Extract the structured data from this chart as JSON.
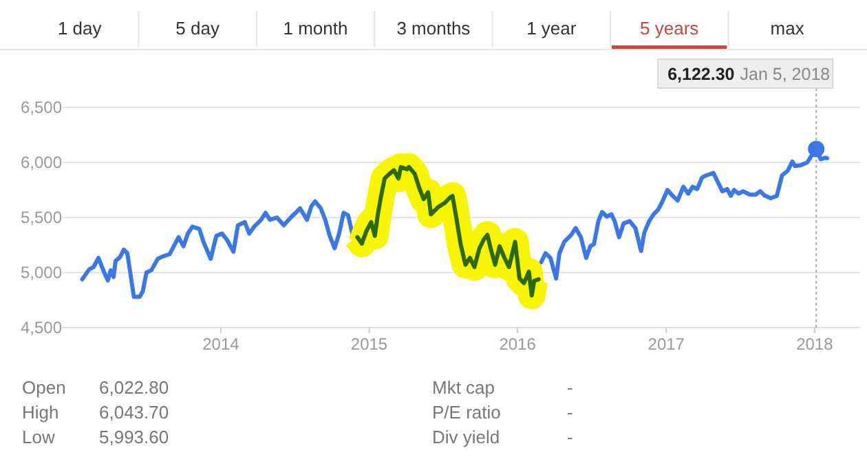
{
  "chart_data": {
    "type": "line",
    "xlim": [
      "2012-12-06",
      "2018-04-23"
    ],
    "xticks": [
      {
        "value": "2014-01-01",
        "label": "2014"
      },
      {
        "value": "2015-01-01",
        "label": "2015"
      },
      {
        "value": "2016-01-01",
        "label": "2016"
      },
      {
        "value": "2017-01-01",
        "label": "2017"
      },
      {
        "value": "2018-01-01",
        "label": "2018"
      }
    ],
    "ylim": [
      4500,
      6700
    ],
    "yticks": [
      {
        "value": 4500,
        "label": "4,500"
      },
      {
        "value": 5000,
        "label": "5,000"
      },
      {
        "value": 5500,
        "label": "5,500"
      },
      {
        "value": 6000,
        "label": "6,000"
      },
      {
        "value": 6500,
        "label": "6,500"
      }
    ],
    "grid": "y",
    "series": [
      {
        "color": "#3b78e7",
        "x": [
          "2013-01-25",
          "2013-02-11",
          "2013-02-22",
          "2013-03-06",
          "2013-03-20",
          "2013-03-29",
          "2013-04-05",
          "2013-04-12",
          "2013-04-17",
          "2013-04-28",
          "2013-05-07",
          "2013-05-16",
          "2013-05-24",
          "2013-06-01",
          "2013-06-15",
          "2013-06-23",
          "2013-07-02",
          "2013-07-14",
          "2013-07-30",
          "2013-08-11",
          "2013-08-28",
          "2013-09-19",
          "2013-10-01",
          "2013-10-12",
          "2013-10-23",
          "2013-11-09",
          "2013-11-20",
          "2013-12-07",
          "2013-12-21",
          "2014-01-04",
          "2014-01-17",
          "2014-02-01",
          "2014-02-12",
          "2014-03-01",
          "2014-03-12",
          "2014-03-24",
          "2014-04-10",
          "2014-04-21",
          "2014-05-02",
          "2014-05-19",
          "2014-06-05",
          "2014-06-22",
          "2014-07-04",
          "2014-07-15",
          "2014-08-01",
          "2014-08-12",
          "2014-08-21",
          "2014-09-04",
          "2014-09-15",
          "2014-09-26",
          "2014-10-08",
          "2014-10-19",
          "2014-10-30",
          "2014-11-10",
          "2014-11-22",
          "2014-12-03",
          "2015-06-01",
          "2016-02-28",
          "2016-03-10",
          "2016-03-22",
          "2016-04-05",
          "2016-04-13",
          "2016-04-25",
          "2016-05-12",
          "2016-05-23",
          "2016-06-05",
          "2016-06-18",
          "2016-06-28",
          "2016-07-07",
          "2016-07-18",
          "2016-07-27",
          "2016-08-08",
          "2016-08-19",
          "2016-08-27",
          "2016-09-07",
          "2016-09-18",
          "2016-10-03",
          "2016-10-17",
          "2016-10-31",
          "2016-11-08",
          "2016-11-20",
          "2016-12-01",
          "2016-12-12",
          "2016-12-21",
          "2017-01-04",
          "2017-01-17",
          "2017-01-29",
          "2017-02-12",
          "2017-02-24",
          "2017-03-07",
          "2017-03-18",
          "2017-03-30",
          "2017-04-10",
          "2017-04-27",
          "2017-05-08",
          "2017-05-19",
          "2017-05-31",
          "2017-06-09",
          "2017-06-17",
          "2017-06-28",
          "2017-07-09",
          "2017-07-26",
          "2017-08-09",
          "2017-08-20",
          "2017-08-31",
          "2017-09-15",
          "2017-09-30",
          "2017-10-13",
          "2017-10-27",
          "2017-11-07",
          "2017-11-14",
          "2017-11-28",
          "2017-12-14",
          "2017-12-26",
          "2018-01-05",
          "2018-01-16",
          "2018-01-27",
          "2018-02-01"
        ],
        "values": [
          4938,
          5029,
          5050,
          5133,
          5000,
          4929,
          5020,
          4960,
          5104,
          5140,
          5208,
          5175,
          4979,
          4779,
          4779,
          4829,
          5000,
          5021,
          5125,
          5146,
          5167,
          5321,
          5238,
          5354,
          5417,
          5396,
          5271,
          5125,
          5333,
          5354,
          5292,
          5188,
          5429,
          5458,
          5354,
          5417,
          5479,
          5542,
          5479,
          5500,
          5429,
          5500,
          5542,
          5583,
          5479,
          5604,
          5646,
          5583,
          5479,
          5333,
          5221,
          5354,
          5542,
          5521,
          5333,
          5321,
          null,
          5092,
          5175,
          5133,
          4946,
          5175,
          5279,
          5342,
          5404,
          5321,
          5133,
          5238,
          5258,
          5467,
          5550,
          5508,
          5529,
          5467,
          5321,
          5446,
          5467,
          5404,
          5196,
          5363,
          5467,
          5529,
          5571,
          5633,
          5750,
          5696,
          5654,
          5779,
          5717,
          5779,
          5758,
          5863,
          5883,
          5904,
          5821,
          5738,
          5758,
          5696,
          5750,
          5717,
          5738,
          5708,
          5708,
          5738,
          5700,
          5675,
          5696,
          5883,
          5925,
          6008,
          5967,
          5975,
          6000,
          6071,
          6122.3,
          6029,
          6042,
          6038
        ]
      },
      {
        "color": "#2d6a0f",
        "x": [
          "2014-12-03",
          "2014-12-14",
          "2014-12-25",
          "2015-01-06",
          "2015-01-15",
          "2015-01-22",
          "2015-01-30",
          "2015-02-08",
          "2015-02-20",
          "2015-03-03",
          "2015-03-14",
          "2015-03-20",
          "2015-04-04",
          "2015-04-09",
          "2015-04-23",
          "2015-05-04",
          "2015-05-15",
          "2015-05-26",
          "2015-06-02",
          "2015-06-19",
          "2015-07-06",
          "2015-07-17",
          "2015-07-25",
          "2015-08-03",
          "2015-08-14",
          "2015-08-26",
          "2015-09-06",
          "2015-09-17",
          "2015-09-29",
          "2015-10-10",
          "2015-10-19",
          "2015-10-27",
          "2015-11-07",
          "2015-11-18",
          "2015-11-30",
          "2015-12-11",
          "2015-12-26",
          "2016-01-06",
          "2016-01-17",
          "2016-01-29",
          "2016-02-05",
          "2016-02-11",
          "2016-02-22"
        ],
        "values": [
          5321,
          5263,
          5375,
          5458,
          5333,
          5521,
          5688,
          5854,
          5896,
          5929,
          5854,
          5958,
          5938,
          5958,
          5896,
          5771,
          5667,
          5729,
          5529,
          5592,
          5633,
          5675,
          5696,
          5508,
          5258,
          5071,
          5133,
          5050,
          5217,
          5300,
          5342,
          5217,
          5071,
          5238,
          5133,
          5050,
          5279,
          4946,
          4904,
          5008,
          4792,
          4925,
          4938
        ]
      },
      {
        "type": "scatter",
        "color": "#3b78e7",
        "x": [
          "2018-01-05"
        ],
        "values": [
          6122.3
        ]
      }
    ],
    "ref_lines": [
      {
        "axis": "x",
        "value": "2018-01-05",
        "color": "#aaaaaa",
        "line_style": "dotted"
      }
    ],
    "annotations": [
      "1 day",
      "5 day",
      "1 month",
      "3 months",
      "1 year",
      "5 years",
      "max",
      "Open",
      "6,022.80",
      "Mkt cap",
      "-",
      "High",
      "6,043.70",
      "P/E ratio",
      "-",
      "Low",
      "5,993.60",
      "Div yield",
      "-",
      "6,122.30",
      "Jan 5, 2018"
    ]
  }
}
